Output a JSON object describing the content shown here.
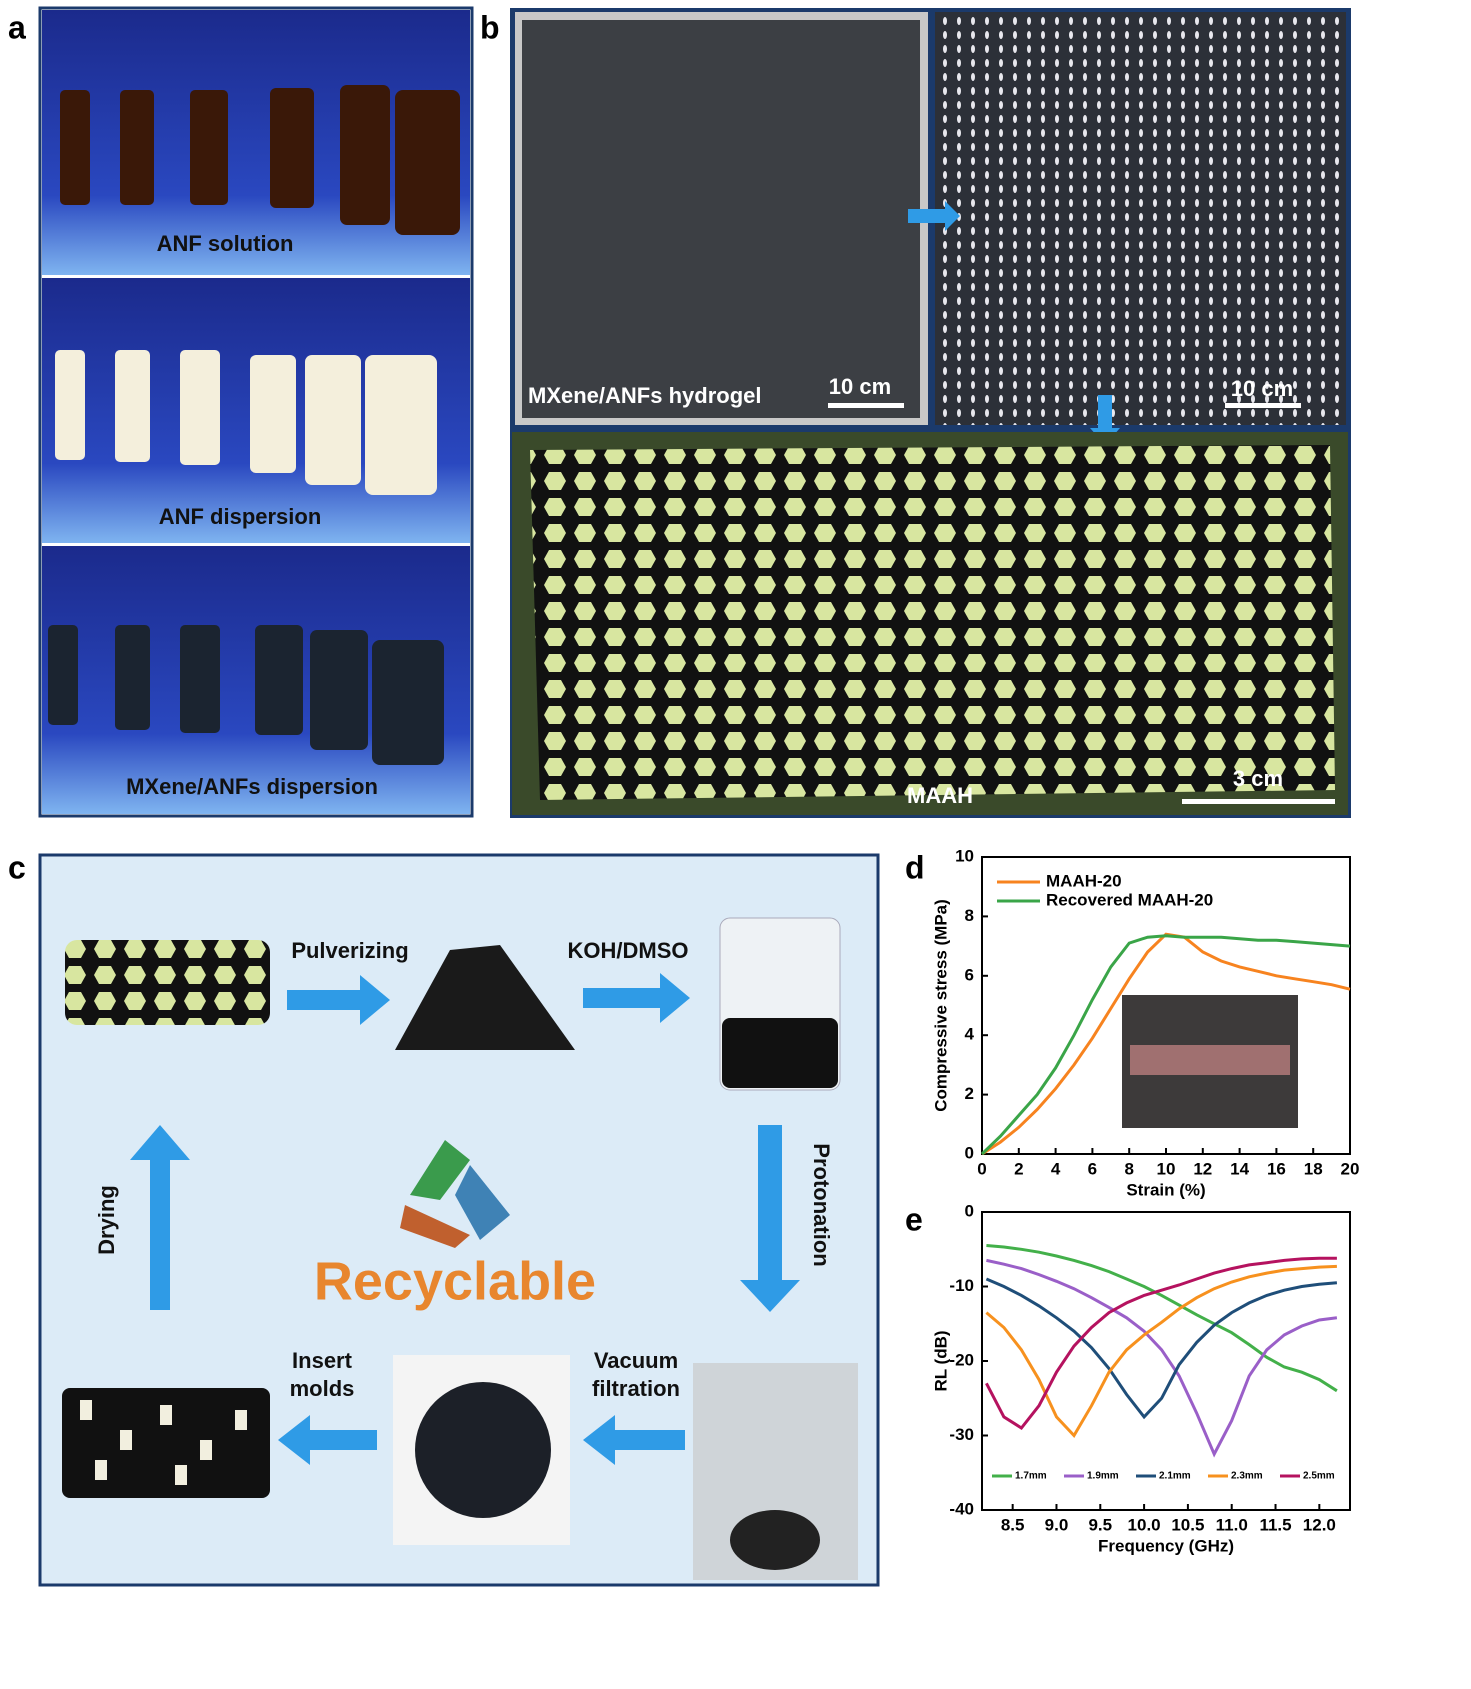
{
  "panel_labels": [
    "a",
    "b",
    "c",
    "d",
    "e"
  ],
  "panel_a": {
    "captions": [
      "ANF solution",
      "ANF dispersion",
      "MXene/ANFs dispersion"
    ]
  },
  "panel_b": {
    "hydrogel_caption": "MXene/ANFs hydrogel",
    "scale_left": "10 cm",
    "scale_right": "10 cm",
    "product_caption": "MAAH",
    "scale_product": "3 cm"
  },
  "panel_c": {
    "pulverizing": "Pulverizing",
    "koh": "KOH/DMSO",
    "protonation": "Protonation",
    "vacuum": [
      "Vacuum",
      "filtration"
    ],
    "insert": [
      "Insert",
      "molds"
    ],
    "drying": "Drying",
    "center": "Recyclable"
  },
  "chart_data": [
    {
      "type": "line",
      "x_label": "Strain (%)",
      "y_label": "Compressive stress (MPa)",
      "legend": "upper left",
      "x": [
        0,
        1,
        2,
        3,
        4,
        5,
        6,
        7,
        8,
        9,
        10,
        11,
        12,
        13,
        14,
        15,
        16,
        17,
        18,
        19,
        20
      ],
      "series": [
        {
          "name": "MAAH-20",
          "color": "#f7831f",
          "values": [
            0,
            0.4,
            0.9,
            1.5,
            2.2,
            3.0,
            3.9,
            4.9,
            5.9,
            6.8,
            7.4,
            7.3,
            6.8,
            6.5,
            6.3,
            6.15,
            6.0,
            5.9,
            5.8,
            5.7,
            5.55
          ]
        },
        {
          "name": "Recovered MAAH-20",
          "color": "#3aa548",
          "values": [
            0,
            0.6,
            1.3,
            2.0,
            2.9,
            4.0,
            5.2,
            6.3,
            7.1,
            7.3,
            7.35,
            7.3,
            7.3,
            7.3,
            7.25,
            7.2,
            7.2,
            7.15,
            7.1,
            7.05,
            7.0
          ]
        }
      ],
      "xlim": [
        0,
        20
      ],
      "ylim": [
        0,
        10
      ],
      "xticks": [
        0,
        2,
        4,
        6,
        8,
        10,
        12,
        14,
        16,
        18,
        20
      ],
      "yticks": [
        0,
        2,
        4,
        6,
        8,
        10
      ]
    },
    {
      "type": "line",
      "x_label": "Frequency (GHz)",
      "y_label": "RL (dB)",
      "legend": "lower center",
      "x": [
        8.2,
        8.4,
        8.6,
        8.8,
        9.0,
        9.2,
        9.4,
        9.6,
        9.8,
        10.0,
        10.2,
        10.4,
        10.6,
        10.8,
        11.0,
        11.2,
        11.4,
        11.6,
        11.8,
        12.0,
        12.2
      ],
      "series": [
        {
          "name": "1.7mm",
          "color": "#43b04a",
          "values": [
            -4.5,
            -4.7,
            -5.0,
            -5.4,
            -5.9,
            -6.5,
            -7.2,
            -8.0,
            -9.0,
            -10.0,
            -11.2,
            -12.5,
            -13.8,
            -15.0,
            -16.2,
            -17.8,
            -19.5,
            -20.8,
            -21.5,
            -22.5,
            -24.0
          ]
        },
        {
          "name": "1.9mm",
          "color": "#9a5fc8",
          "values": [
            -6.5,
            -7.0,
            -7.6,
            -8.4,
            -9.3,
            -10.3,
            -11.5,
            -12.8,
            -14.2,
            -16.0,
            -18.5,
            -22,
            -27,
            -32.5,
            -28,
            -22,
            -18.5,
            -16.5,
            -15.3,
            -14.5,
            -14.2
          ]
        },
        {
          "name": "2.1mm",
          "color": "#1f4e79",
          "values": [
            -9,
            -10,
            -11.2,
            -12.6,
            -14.2,
            -16.0,
            -18.2,
            -21,
            -24.5,
            -27.5,
            -25,
            -20.5,
            -17.5,
            -15.2,
            -13.5,
            -12.2,
            -11.2,
            -10.5,
            -10.0,
            -9.7,
            -9.5
          ]
        },
        {
          "name": "2.3mm",
          "color": "#f7911e",
          "values": [
            -13.5,
            -15.5,
            -18.5,
            -22.5,
            -27.5,
            -30,
            -26,
            -21.5,
            -18.5,
            -16.5,
            -14.8,
            -13,
            -11.5,
            -10.3,
            -9.4,
            -8.7,
            -8.2,
            -7.8,
            -7.6,
            -7.4,
            -7.3
          ]
        },
        {
          "name": "2.5mm",
          "color": "#b5125f",
          "values": [
            -23,
            -27.5,
            -29,
            -26,
            -21.5,
            -18,
            -15.5,
            -13.5,
            -12.2,
            -11.2,
            -10.5,
            -9.8,
            -9.0,
            -8.2,
            -7.6,
            -7.1,
            -6.8,
            -6.5,
            -6.3,
            -6.2,
            -6.2
          ]
        }
      ],
      "xlim": [
        8.15,
        12.35
      ],
      "ylim": [
        -40,
        0
      ],
      "xticks": [
        8.5,
        {
          "value": 9,
          "label": "9.0"
        },
        9.5,
        {
          "value": 10,
          "label": "10.0"
        },
        10.5,
        {
          "value": 11,
          "label": "11.0"
        },
        11.5,
        {
          "value": 12,
          "label": "12.0"
        }
      ],
      "yticks": [
        -40,
        -30,
        -20,
        -10,
        0
      ]
    }
  ]
}
